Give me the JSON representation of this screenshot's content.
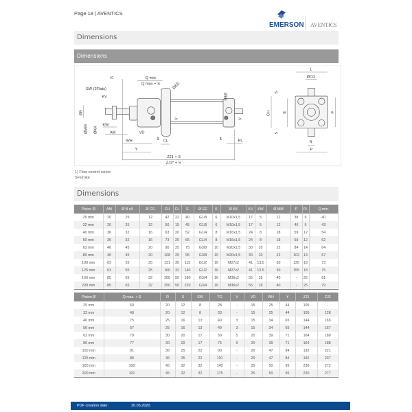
{
  "header": {
    "page_label": "Page 18 | AVENTICS",
    "logo_brand": "EMERSON",
    "logo_sub": "AVENTICS"
  },
  "section_title": "Dimensions",
  "subsection_title": "Dimensions",
  "diagram": {
    "labels": {
      "k": "K",
      "qmin": "Q min",
      "qmax": "Q max + S",
      "ee1": "ØEE",
      "ee2": "ØEE",
      "sw": "SW (2Flats)",
      "kv": "KV",
      "b": "ØB",
      "mm": "ØMM",
      "kk": "ØKK",
      "kw": "KW",
      "am": "AM",
      "vd": "VD",
      "wh": "WH",
      "y": "Y",
      "cl": "CL",
      "one1": "1",
      "one2": "1",
      "v1": "V",
      "v2": "V",
      "pl": "PL",
      "zj1": "ZJ1 + S",
      "zj2": "ZJ2* + S",
      "l": "L",
      "cg": "ØCG",
      "s1": "S",
      "s2": "S",
      "ch": "CH",
      "e": "E",
      "p1": "P",
      "p2": "P",
      "r": "R"
    }
  },
  "notes": [
    "1) Flow control screw",
    "S=stroke"
  ],
  "section2_title": "Dimensions",
  "table1": {
    "headers": [
      "Piston Ø",
      "AM",
      "Ø B e9",
      "Ø CG",
      "CH",
      "CL",
      "E",
      "Ø EE",
      "K",
      "Ø KK",
      "KV",
      "KW",
      "Ø MM",
      "P",
      "PL",
      "Q min."
    ],
    "rows": [
      [
        "25 mm",
        "20",
        "25",
        "12",
        "42",
        "22",
        "40",
        "G1/8",
        "6",
        "M10x1,5",
        "17",
        "5",
        "12",
        "38",
        "9",
        "40"
      ],
      [
        "32 mm",
        "20",
        "25",
        "12",
        "50",
        "15",
        "45",
        "G1/8",
        "6",
        "M10x1,5",
        "17",
        "5",
        "12",
        "46",
        "9",
        "43"
      ],
      [
        "40 mm",
        "36",
        "32",
        "16",
        "63",
        "20",
        "52",
        "G1/4",
        "8",
        "M16x1,5",
        "24",
        "8",
        "18",
        "59",
        "12",
        "54"
      ],
      [
        "50 mm",
        "36",
        "32",
        "16",
        "73",
        "20",
        "65",
        "G1/4",
        "8",
        "M16x1,5",
        "24",
        "8",
        "18",
        "69",
        "12",
        "62"
      ],
      [
        "63 mm",
        "46",
        "45",
        "20",
        "90",
        "25",
        "75",
        "G3/8",
        "10",
        "M20x1,5",
        "30",
        "10",
        "22",
        "84",
        "14",
        "64"
      ],
      [
        "80 mm",
        "46",
        "45",
        "20",
        "108",
        "25",
        "95",
        "G3/8",
        "10",
        "M20x1,5",
        "30",
        "10",
        "22",
        "102",
        "14",
        "67"
      ],
      [
        "100 mm",
        "63",
        "55",
        "25",
        "131",
        "30",
        "115",
        "G1/2",
        "16",
        "M27x2",
        "41",
        "13.5",
        "30",
        "125",
        "18",
        "73"
      ],
      [
        "125 mm",
        "63",
        "55",
        "25",
        "160",
        "32",
        "140",
        "G1/2",
        "16",
        "M27x2",
        "41",
        "13.5",
        "30",
        "155",
        "18",
        "75"
      ],
      [
        "160 mm",
        "85",
        "65",
        "32",
        "200",
        "50",
        "180",
        "G3/4",
        "16",
        "M36x2",
        "55",
        "18",
        "40",
        "-",
        "25",
        "81"
      ],
      [
        "200 mm",
        "85",
        "65",
        "32",
        "250",
        "50",
        "220",
        "G3/4",
        "16",
        "M36x2",
        "55",
        "18",
        "40",
        "-",
        "25",
        "79"
      ]
    ]
  },
  "table2": {
    "headers": [
      "Piston Ø",
      "Q max. + S",
      "R",
      "S",
      "SW",
      "TG",
      "V",
      "VD",
      "WH",
      "Y",
      "ZJ1",
      "ZJ2"
    ],
    "rows": [
      [
        "25 mm",
        "50",
        "20",
        "12",
        "8",
        "28",
        "-",
        "15",
        "25",
        "44",
        "105",
        "-"
      ],
      [
        "32 mm",
        "48",
        "20",
        "12",
        "8",
        "33",
        "-",
        "15",
        "25",
        "44",
        "105",
        "128"
      ],
      [
        "40 mm",
        "75",
        "25",
        "16",
        "13",
        "40",
        "3",
        "15",
        "34",
        "65",
        "144",
        "165"
      ],
      [
        "50 mm",
        "67",
        "25",
        "16",
        "13",
        "49",
        "3",
        "15",
        "34",
        "65",
        "144",
        "167"
      ],
      [
        "63 mm",
        "79",
        "30",
        "20",
        "17",
        "59",
        "5",
        "20",
        "39",
        "71",
        "164",
        "189"
      ],
      [
        "80 mm",
        "77",
        "30",
        "20",
        "17",
        "75",
        "9",
        "20",
        "39",
        "71",
        "164",
        "188"
      ],
      [
        "100 mm",
        "91",
        "36",
        "25",
        "22",
        "90",
        "-",
        "20",
        "47",
        "84",
        "192",
        "221"
      ],
      [
        "125 mm",
        "89",
        "36",
        "25",
        "22",
        "110",
        "-",
        "20",
        "47",
        "84",
        "192",
        "237"
      ],
      [
        "160 mm",
        "100",
        "45",
        "32",
        "32",
        "140",
        "-",
        "25",
        "50",
        "95",
        "230",
        "272"
      ],
      [
        "200 mm",
        "101",
        "45",
        "32",
        "32",
        "175",
        "-",
        "25",
        "50",
        "95",
        "230",
        "277"
      ]
    ]
  },
  "footer": {
    "label": "PDF creation date:",
    "date": "20.06.2020"
  },
  "colors": {
    "footer_blue": "#0a4a8f",
    "header_gray": "#8d8d8d",
    "brand_blue": "#1d4f91"
  }
}
